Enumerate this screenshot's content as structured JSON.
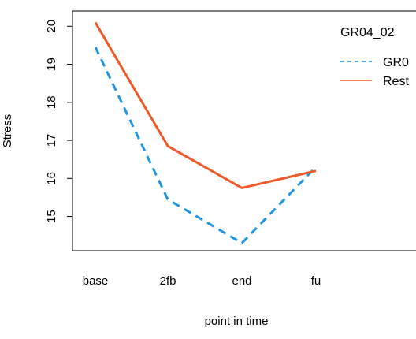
{
  "chart_data": {
    "type": "line",
    "title": "",
    "xlabel": "point in time",
    "ylabel": "Stress",
    "categories": [
      "base",
      "2fb",
      "end",
      "fu"
    ],
    "ylim": [
      14.1,
      20.4
    ],
    "yticks": [
      "15",
      "16",
      "17",
      "18",
      "19",
      "20"
    ],
    "grid": false,
    "legend": {
      "title": "GR04_02",
      "placement": "top-right (clipped)",
      "entries": [
        "GR0",
        "Rest"
      ]
    },
    "series": [
      {
        "name": "GR0",
        "values": [
          19.45,
          15.45,
          14.3,
          16.3
        ],
        "color": "#2196e0",
        "style": "dashed"
      },
      {
        "name": "Rest",
        "values": [
          20.1,
          16.85,
          15.75,
          16.2
        ],
        "color": "#ef5a2b",
        "style": "solid"
      }
    ]
  }
}
